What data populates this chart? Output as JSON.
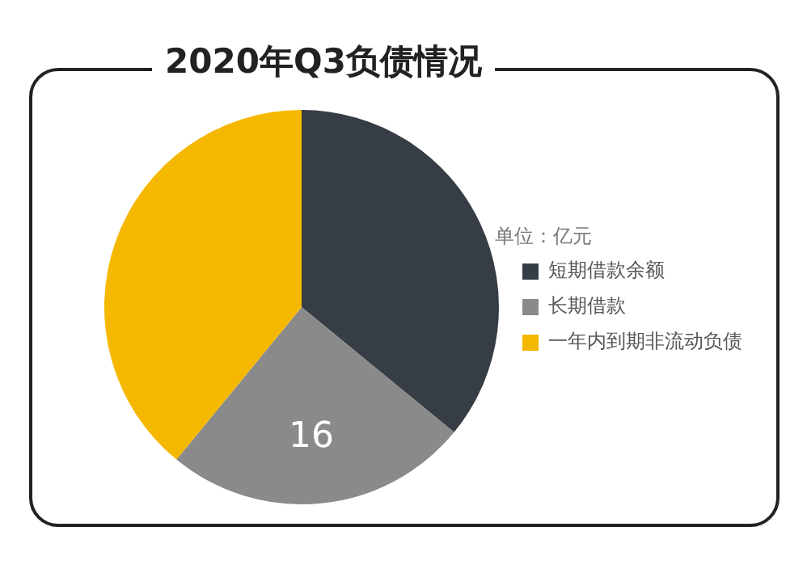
{
  "chart_data": {
    "type": "pie",
    "title": "2020年Q3负债情况",
    "categories": [
      "短期借款余额",
      "长期借款",
      "一年内到期非流动负债"
    ],
    "values": [
      23,
      16,
      25
    ],
    "colors": [
      "#373d45",
      "#8a8a8a",
      "#f5b800"
    ],
    "value_labels": [
      null,
      "16",
      null
    ],
    "legend": "right",
    "annotations": [
      "单位：亿元"
    ]
  }
}
